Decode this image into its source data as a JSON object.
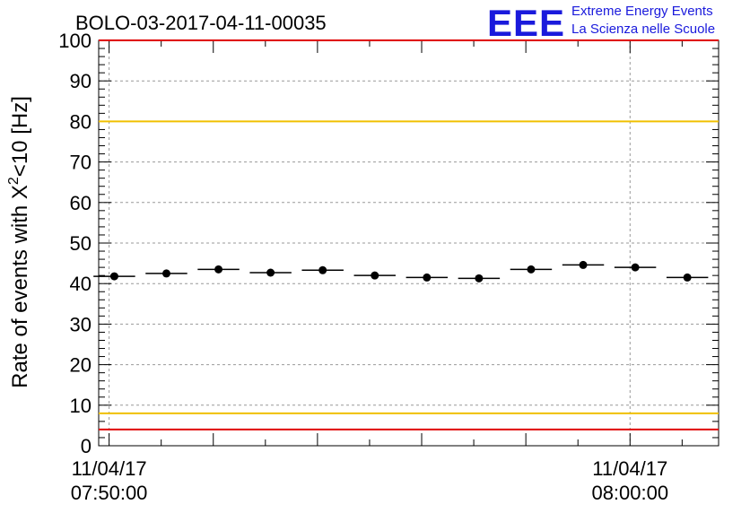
{
  "chart_data": {
    "type": "scatter",
    "title": "BOLO-03-2017-04-11-00035",
    "ylabel_main": "Rate of events with X",
    "ylabel_sup": "2",
    "ylabel_tail": "<10 [Hz]",
    "xlabel": "",
    "ylim": [
      0,
      100
    ],
    "xlim_minutes": [
      -0.2,
      11.7
    ],
    "grid": true,
    "yticks": [
      0,
      10,
      20,
      30,
      40,
      50,
      60,
      70,
      80,
      90,
      100
    ],
    "xtick_labels": [
      {
        "date": "11/04/17",
        "time": "07:50:00",
        "minute": 0
      },
      {
        "date": "11/04/17",
        "time": "08:00:00",
        "minute": 10
      }
    ],
    "bin_width_minutes": 0.8,
    "points": [
      {
        "x": 0.1,
        "y": 41.8
      },
      {
        "x": 1.1,
        "y": 42.5
      },
      {
        "x": 2.1,
        "y": 43.5
      },
      {
        "x": 3.1,
        "y": 42.7
      },
      {
        "x": 4.1,
        "y": 43.3
      },
      {
        "x": 5.1,
        "y": 42.0
      },
      {
        "x": 6.1,
        "y": 41.5
      },
      {
        "x": 7.1,
        "y": 41.3
      },
      {
        "x": 8.1,
        "y": 43.5
      },
      {
        "x": 9.1,
        "y": 44.6
      },
      {
        "x": 10.1,
        "y": 44.0
      },
      {
        "x": 11.1,
        "y": 41.5
      }
    ],
    "reference_lines": [
      {
        "y": 100,
        "color": "#e00000"
      },
      {
        "y": 80,
        "color": "#f0c000"
      },
      {
        "y": 8,
        "color": "#f0c000"
      },
      {
        "y": 4,
        "color": "#e00000"
      }
    ],
    "marker_color": "#000000"
  },
  "logo": {
    "letters": "EEE",
    "line1": "Extreme Energy Events",
    "line2": "La Scienza nelle Scuole",
    "color": "#1a1adc"
  }
}
